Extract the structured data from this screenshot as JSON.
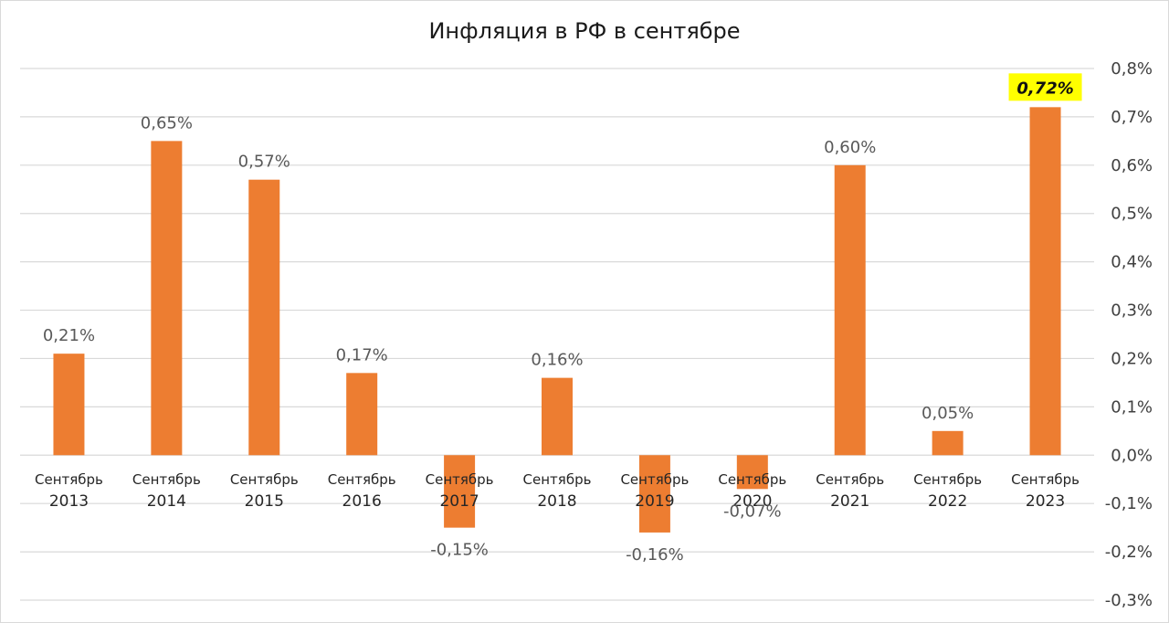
{
  "chart_data": {
    "type": "bar",
    "title": "Инфляция в РФ в сентябре",
    "categories": [
      [
        "Сентябрь",
        "2013"
      ],
      [
        "Сентябрь",
        "2014"
      ],
      [
        "Сентябрь",
        "2015"
      ],
      [
        "Сентябрь",
        "2016"
      ],
      [
        "Сентябрь",
        "2017"
      ],
      [
        "Сентябрь",
        "2018"
      ],
      [
        "Сентябрь",
        "2019"
      ],
      [
        "Сентябрь",
        "2020"
      ],
      [
        "Сентябрь",
        "2021"
      ],
      [
        "Сентябрь",
        "2022"
      ],
      [
        "Сентябрь",
        "2023"
      ]
    ],
    "values": [
      0.21,
      0.65,
      0.57,
      0.17,
      -0.15,
      0.16,
      -0.16,
      -0.07,
      0.6,
      0.05,
      0.72
    ],
    "data_labels": [
      "0,21%",
      "0,65%",
      "0,57%",
      "0,17%",
      "-0,15%",
      "0,16%",
      "-0,16%",
      "-0,07%",
      "0,60%",
      "0,05%",
      "0,72%"
    ],
    "highlighted_label": "0,72%",
    "highlight_index": 10,
    "y_axis_position": "right",
    "ylim": [
      -0.3,
      0.8
    ],
    "y_ticks": [
      0.8,
      0.7,
      0.6,
      0.5,
      0.4,
      0.3,
      0.2,
      0.1,
      0.0,
      -0.1,
      -0.2,
      -0.3
    ],
    "y_tick_labels": [
      "0,8%",
      "0,7%",
      "0,6%",
      "0,5%",
      "0,4%",
      "0,3%",
      "0,2%",
      "0,1%",
      "0,0%",
      "-0,1%",
      "-0,2%",
      "-0,3%"
    ],
    "grid": true,
    "legend": "none",
    "colors": {
      "bar": "#ED7D31",
      "grid": "#d9d9d9",
      "highlight_bg": "#FFFF00"
    }
  }
}
